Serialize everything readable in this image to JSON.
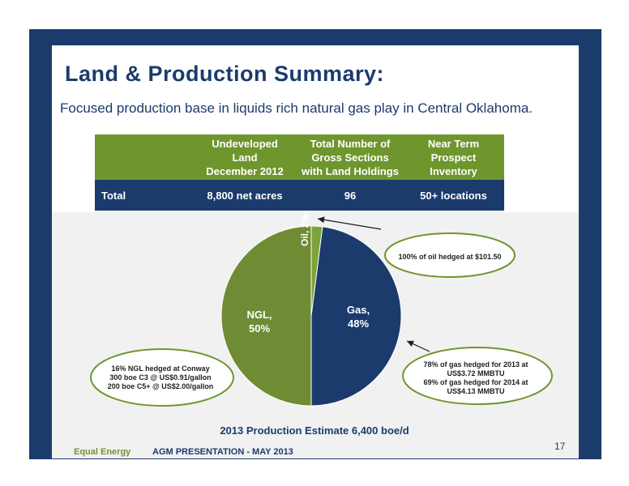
{
  "slide": {
    "title": "Land & Production Summary:",
    "subtitle": "Focused production base in liquids rich natural gas play in Central Oklahoma.",
    "page_number": "17"
  },
  "table": {
    "headers": [
      "",
      "Undeveloped\nLand\nDecember 2012",
      "Total Number of\nGross Sections\nwith Land Holdings",
      "Near Term\nProspect\nInventory"
    ],
    "row": [
      "Total",
      "8,800 net acres",
      "96",
      "50+ locations"
    ]
  },
  "chart_data": {
    "type": "pie",
    "title": "2013 Production Estimate 6,400 boe/d",
    "slices": [
      {
        "label": "Oil, 2%",
        "name": "Oil",
        "value": 2,
        "color": "#7da33a"
      },
      {
        "label": "Gas,\n48%",
        "name": "Gas",
        "value": 48,
        "color": "#1b3b6d"
      },
      {
        "label": "NGL,\n50%",
        "name": "NGL",
        "value": 50,
        "color": "#6f8b34"
      }
    ],
    "annotations": [
      {
        "name": "oil",
        "text": "100% of oil hedged at $101.50"
      },
      {
        "name": "gas",
        "text": "78% of gas hedged for 2013 at\nUS$3.72 MMBTU\n69% of gas hedged for 2014 at\nUS$4.13 MMBTU"
      },
      {
        "name": "ngl",
        "text": "16% NGL hedged at Conway\n300 boe C3 @ US$0.91/gallon\n200 boe C5+ @ US$2.00/gallon"
      }
    ]
  },
  "footer": {
    "company": "Equal Energy",
    "presentation": "AGM PRESENTATION - MAY 2013"
  },
  "colors": {
    "navy": "#1b3b6d",
    "green": "#6f962c"
  }
}
